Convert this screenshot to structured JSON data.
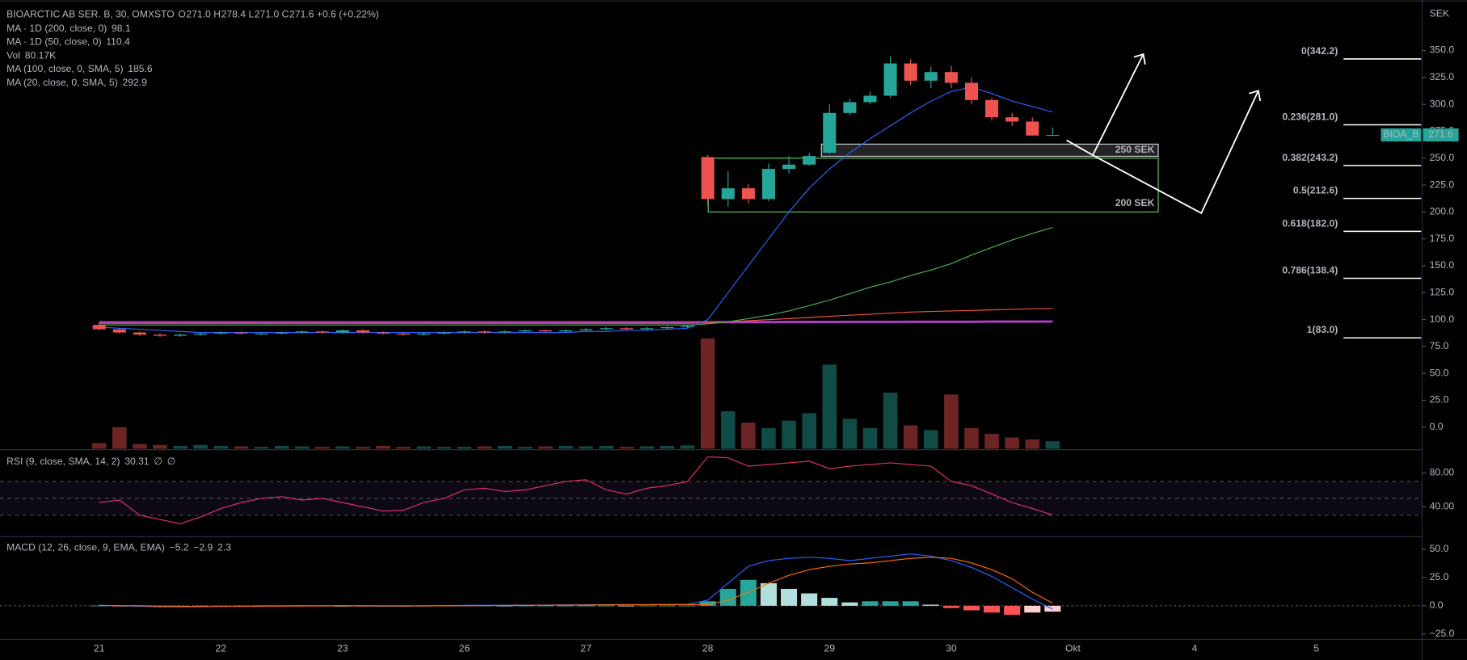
{
  "chart_data": [
    {
      "type": "candlestick",
      "title": "BIOARCTIC AB SER. B, 30, OMXSTO",
      "ohlc": [
        {
          "key": "O",
          "value": 271,
          "label": "271.0"
        },
        {
          "key": "H",
          "value": 278.4,
          "label": "278.4"
        },
        {
          "key": "L",
          "value": 271,
          "label": "271.0"
        },
        {
          "key": "C",
          "value": 271.6,
          "label": "271.6"
        }
      ],
      "change": "+0.6 (+0.22%)",
      "axis_label": "SEK",
      "up_color": "#26a69a",
      "down_color": "#ef5350",
      "categories": [
        "21",
        null,
        null,
        null,
        null,
        null,
        "22",
        null,
        null,
        null,
        null,
        null,
        "23",
        null,
        null,
        null,
        null,
        null,
        "26",
        null,
        null,
        null,
        null,
        null,
        "27",
        null,
        null,
        null,
        null,
        null,
        "28",
        null,
        null,
        null,
        null,
        null,
        "29",
        null,
        null,
        null,
        null,
        null,
        "30",
        null,
        null,
        null,
        null,
        null,
        "Okt",
        null,
        null,
        null,
        null,
        null,
        "4",
        null,
        null,
        null,
        null,
        null,
        "5",
        null,
        null,
        null,
        null,
        null
      ],
      "open": [
        95,
        91,
        88,
        86,
        85,
        86,
        87,
        88,
        87,
        87,
        88,
        89,
        88,
        90,
        88,
        87,
        86,
        87,
        88,
        89,
        88,
        89,
        90,
        89,
        90,
        91,
        92,
        91,
        92,
        93,
        251,
        212,
        222,
        212,
        240,
        244,
        255,
        292,
        302,
        308,
        338,
        322,
        330,
        320,
        304,
        288,
        284,
        271,
        null,
        null,
        null,
        null,
        null,
        null,
        null,
        null,
        null,
        null,
        null,
        null,
        null,
        null,
        null,
        null,
        null,
        null
      ],
      "high": [
        97,
        92,
        89,
        87,
        87,
        88,
        89,
        89,
        88,
        89,
        90,
        90,
        91,
        91,
        89,
        88,
        88,
        89,
        90,
        90,
        90,
        91,
        91,
        91,
        92,
        93,
        93,
        93,
        94,
        95,
        253,
        238,
        226,
        245,
        252,
        255,
        300,
        305,
        312,
        345,
        342,
        335,
        336,
        325,
        306,
        292,
        288,
        278.4,
        null,
        null,
        null,
        null,
        null,
        null,
        null,
        null,
        null,
        null,
        null,
        null,
        null,
        null,
        null,
        null,
        null,
        null
      ],
      "low": [
        90,
        87,
        85,
        84,
        84,
        85,
        86,
        86,
        86,
        86,
        87,
        87,
        87,
        87,
        86,
        85,
        85,
        86,
        87,
        87,
        87,
        88,
        88,
        88,
        89,
        90,
        90,
        90,
        91,
        92,
        206,
        205,
        208,
        210,
        236,
        243,
        254,
        290,
        300,
        306,
        318,
        315,
        315,
        300,
        285,
        280,
        271,
        271,
        null,
        null,
        null,
        null,
        null,
        null,
        null,
        null,
        null,
        null,
        null,
        null,
        null,
        null,
        null,
        null,
        null,
        null
      ],
      "close": [
        91,
        88,
        86,
        85,
        86,
        87,
        88,
        87,
        87,
        88,
        89,
        88,
        90,
        88,
        87,
        86,
        87,
        88,
        89,
        88,
        89,
        90,
        89,
        90,
        91,
        92,
        91,
        92,
        93,
        94,
        212,
        222,
        212,
        240,
        244,
        252,
        292,
        302,
        308,
        338,
        322,
        330,
        320,
        304,
        288,
        284,
        271,
        271.6,
        null,
        null,
        null,
        null,
        null,
        null,
        null,
        null,
        null,
        null,
        null,
        null,
        null,
        null,
        null,
        null,
        null,
        null
      ],
      "ylim": [
        -20,
        390
      ],
      "yticks": [
        {
          "value": 0,
          "label": "0.0"
        },
        {
          "value": 25,
          "label": "25.0"
        },
        {
          "value": 50,
          "label": "50.0"
        },
        {
          "value": 75,
          "label": "75.0"
        },
        {
          "value": 100,
          "label": "100.0"
        },
        {
          "value": 125,
          "label": "125.0"
        },
        {
          "value": 150,
          "label": "150.0"
        },
        {
          "value": 175,
          "label": "175.0"
        },
        {
          "value": 200,
          "label": "200.0"
        },
        {
          "value": 225,
          "label": "225.0"
        },
        {
          "value": 250,
          "label": "250.0"
        },
        {
          "value": 275,
          "label": "275.0"
        },
        {
          "value": 300,
          "label": "300.0"
        },
        {
          "value": 325,
          "label": "325.0"
        },
        {
          "value": 350,
          "label": "350.0"
        }
      ],
      "grid": false,
      "last_price": {
        "symbol": "BIOA_B",
        "value": 271.6,
        "color": "#26a69a"
      },
      "series": [
        {
          "name": "MA · 1D (200, close, 0)",
          "color": "#b43cc8",
          "legend_value": 98.1,
          "values": [
            97.5,
            97.5,
            97.5,
            97.5,
            97.5,
            97.5,
            97.5,
            97.5,
            97.5,
            97.5,
            97.5,
            97.5,
            97.5,
            97.5,
            97.5,
            97.5,
            97.5,
            97.5,
            97.5,
            97.5,
            97.5,
            97.5,
            97.5,
            97.5,
            97.5,
            97.5,
            97.5,
            97.5,
            97.5,
            97.5,
            97.6,
            97.6,
            97.7,
            97.7,
            97.8,
            97.8,
            97.8,
            97.9,
            97.9,
            97.9,
            98,
            98,
            98,
            98,
            98.1,
            98.1,
            98.1,
            98.1,
            null,
            null,
            null,
            null,
            null,
            null,
            null,
            null,
            null,
            null,
            null,
            null,
            null,
            null,
            null,
            null,
            null,
            null
          ]
        },
        {
          "name": "MA · 1D (50, close, 0)",
          "color": "#f0533a",
          "legend_value": 110.4,
          "values": [
            96.5,
            96.5,
            96.5,
            96.5,
            96.5,
            96.5,
            96.5,
            96.5,
            96.5,
            96.5,
            96.5,
            96.5,
            96.5,
            96.5,
            96.5,
            96.5,
            96.5,
            96.5,
            96.5,
            96.5,
            96.5,
            96.5,
            96.5,
            96.5,
            96.5,
            96.5,
            96.5,
            96.5,
            96.5,
            96.5,
            97,
            98,
            99,
            100,
            101,
            102,
            103,
            104,
            105,
            106,
            107,
            107.5,
            108,
            108.5,
            109,
            109.5,
            110,
            110.4,
            null,
            null,
            null,
            null,
            null,
            null,
            null,
            null,
            null,
            null,
            null,
            null,
            null,
            null,
            null,
            null,
            null,
            null
          ]
        },
        {
          "name": "MA (100, close, 0, SMA, 5)",
          "color": "#4caf50",
          "legend_value": 185.6,
          "values": [
            95,
            95,
            95,
            95,
            95,
            95,
            95,
            95,
            95,
            95,
            95,
            95,
            95,
            95,
            95,
            95,
            95,
            95,
            95,
            95,
            95,
            95,
            95,
            95,
            95,
            95,
            95,
            95,
            95,
            95,
            96,
            98,
            101,
            104,
            108,
            113,
            118,
            124,
            130,
            135,
            141,
            146,
            152,
            160,
            167,
            174,
            180,
            185.6,
            null,
            null,
            null,
            null,
            null,
            null,
            null,
            null,
            null,
            null,
            null,
            null,
            null,
            null,
            null,
            null,
            null,
            null
          ]
        },
        {
          "name": "MA (20, close, 0, SMA, 5)",
          "color": "#2962ff",
          "legend_value": 292.9,
          "values": [
            93,
            92,
            91,
            90,
            89,
            88,
            88,
            88,
            88,
            88,
            88,
            88,
            88,
            88,
            88,
            88,
            88,
            88,
            88,
            88,
            88,
            88,
            88,
            88,
            89,
            89,
            90,
            90,
            91,
            92,
            100,
            125,
            150,
            175,
            200,
            222,
            240,
            255,
            268,
            280,
            292,
            303,
            312,
            316,
            310,
            303,
            298,
            292.9,
            null,
            null,
            null,
            null,
            null,
            null,
            null,
            null,
            null,
            null,
            null,
            null,
            null,
            null,
            null,
            null,
            null,
            null
          ]
        }
      ],
      "volume": {
        "name": "Vol",
        "color": "#26a69a",
        "legend_value": {
          "value": 80170,
          "label": "80.17K"
        },
        "vlim": [
          0,
          2400000
        ],
        "values": [
          60000,
          230000,
          50000,
          40000,
          30000,
          40000,
          30000,
          25000,
          20000,
          30000,
          25000,
          20000,
          25000,
          20000,
          30000,
          20000,
          25000,
          20000,
          20000,
          25000,
          30000,
          20000,
          25000,
          30000,
          25000,
          30000,
          20000,
          25000,
          30000,
          35000,
          1180000,
          400000,
          280000,
          220000,
          300000,
          380000,
          900000,
          320000,
          220000,
          600000,
          250000,
          200000,
          580000,
          220000,
          160000,
          120000,
          100000,
          80170,
          null,
          null,
          null,
          null,
          null,
          null,
          null,
          null,
          null,
          null,
          null,
          null,
          null,
          null,
          null,
          null,
          null,
          null
        ]
      },
      "fib_levels": [
        {
          "value": 342.2,
          "label": "0(342.2)"
        },
        {
          "value": 281.0,
          "label": "0.236(281.0)"
        },
        {
          "value": 243.2,
          "label": "0.382(243.2)"
        },
        {
          "value": 212.6,
          "label": "0.5(212.6)"
        },
        {
          "value": 182.0,
          "label": "0.618(182.0)"
        },
        {
          "value": 138.4,
          "label": "0.786(138.4)"
        },
        {
          "value": 83.0,
          "label": "1(83.0)"
        }
      ],
      "annotations": [
        {
          "label": "250 SEK",
          "value": 250
        },
        {
          "label": "200 SEK",
          "value": 200
        }
      ],
      "annotation_color": "#4caf50"
    },
    {
      "type": "line",
      "title": "RSI (9, close, SMA, 14, 2)",
      "color": "#e0306a",
      "legend_value": 30.31,
      "legend_marks": [
        "∅",
        "∅"
      ],
      "values": [
        45,
        48,
        30,
        25,
        20,
        28,
        38,
        45,
        50,
        52,
        48,
        50,
        45,
        40,
        35,
        36,
        45,
        50,
        60,
        62,
        58,
        60,
        65,
        70,
        72,
        60,
        55,
        62,
        65,
        70,
        99,
        98,
        88,
        90,
        92,
        94,
        85,
        88,
        90,
        92,
        90,
        88,
        70,
        65,
        55,
        45,
        38,
        30.31,
        null,
        null,
        null,
        null,
        null,
        null,
        null,
        null,
        null,
        null,
        null,
        null,
        null,
        null,
        null,
        null,
        null,
        null
      ],
      "ylim": [
        7,
        102
      ],
      "yticks": [
        {
          "value": 80,
          "label": "80.00"
        },
        {
          "value": 40,
          "label": "40.00"
        }
      ],
      "band_levels": [
        30,
        50,
        70
      ],
      "grid": false
    },
    {
      "type": "macd",
      "title": "MACD (12, 26, close, 9, EMA, EMA)",
      "ylim": [
        -29,
        58
      ],
      "yticks": [
        {
          "value": 50,
          "label": "50.0"
        },
        {
          "value": 25,
          "label": "25.0"
        },
        {
          "value": 0,
          "label": "0.0"
        },
        {
          "value": -25,
          "label": "−25.0"
        }
      ],
      "grid": false,
      "hist_colors": [
        "#26a69a",
        "#b2dfdb",
        "#ffcdd2",
        "#ff5252"
      ],
      "series": [
        {
          "color": "#ffffff",
          "legend_value": {
            "value": -5.2,
            "label": "−5.2"
          },
          "values": [
            0.2,
            -0.2,
            -0.5,
            -0.7,
            -0.5,
            -0.2,
            0.1,
            0.2,
            0.4,
            0.3,
            0.4,
            0.2,
            0,
            -0.2,
            -0.2,
            -0.2,
            0.1,
            0.2,
            0.3,
            0.3,
            0.2,
            0.2,
            0.2,
            0.2,
            0.2,
            0.2,
            0.1,
            0.2,
            0.2,
            0.2,
            4,
            15,
            23,
            20,
            15,
            11,
            7,
            3,
            4,
            4,
            4,
            1,
            -2,
            -4,
            -6,
            -8,
            -6,
            -5.2,
            null,
            null,
            null,
            null,
            null,
            null,
            null,
            null,
            null,
            null,
            null,
            null,
            null,
            null,
            null,
            null,
            null,
            null
          ]
        },
        {
          "color": "#2962ff",
          "legend_value": {
            "value": -2.9,
            "label": "−2.9"
          },
          "values": [
            0.5,
            0,
            -0.5,
            -1,
            -1,
            -0.8,
            -0.5,
            -0.3,
            0,
            0,
            0.2,
            0.1,
            0,
            -0.2,
            -0.3,
            -0.3,
            0,
            0.2,
            0.4,
            0.5,
            0.5,
            0.6,
            0.7,
            0.8,
            0.9,
            1,
            1,
            1.1,
            1.2,
            1.3,
            5,
            20,
            35,
            40,
            42,
            43,
            42,
            40,
            42,
            44,
            46,
            44,
            40,
            34,
            26,
            16,
            6,
            -2.9,
            null,
            null,
            null,
            null,
            null,
            null,
            null,
            null,
            null,
            null,
            null,
            null,
            null,
            null,
            null,
            null,
            null,
            null
          ]
        },
        {
          "color": "#ff6d00",
          "legend_value": 2.3,
          "values": [
            0.3,
            0.2,
            0,
            -0.3,
            -0.5,
            -0.6,
            -0.6,
            -0.5,
            -0.4,
            -0.3,
            -0.2,
            -0.1,
            0,
            0,
            -0.1,
            -0.1,
            -0.1,
            0,
            0.1,
            0.2,
            0.3,
            0.4,
            0.5,
            0.6,
            0.7,
            0.8,
            0.9,
            0.9,
            1,
            1.1,
            1,
            5,
            12,
            20,
            27,
            32,
            35,
            37,
            38,
            40,
            42,
            43,
            42,
            38,
            32,
            24,
            12,
            2.3,
            null,
            null,
            null,
            null,
            null,
            null,
            null,
            null,
            null,
            null,
            null,
            null,
            null,
            null,
            null,
            null,
            null,
            null
          ]
        }
      ]
    }
  ]
}
